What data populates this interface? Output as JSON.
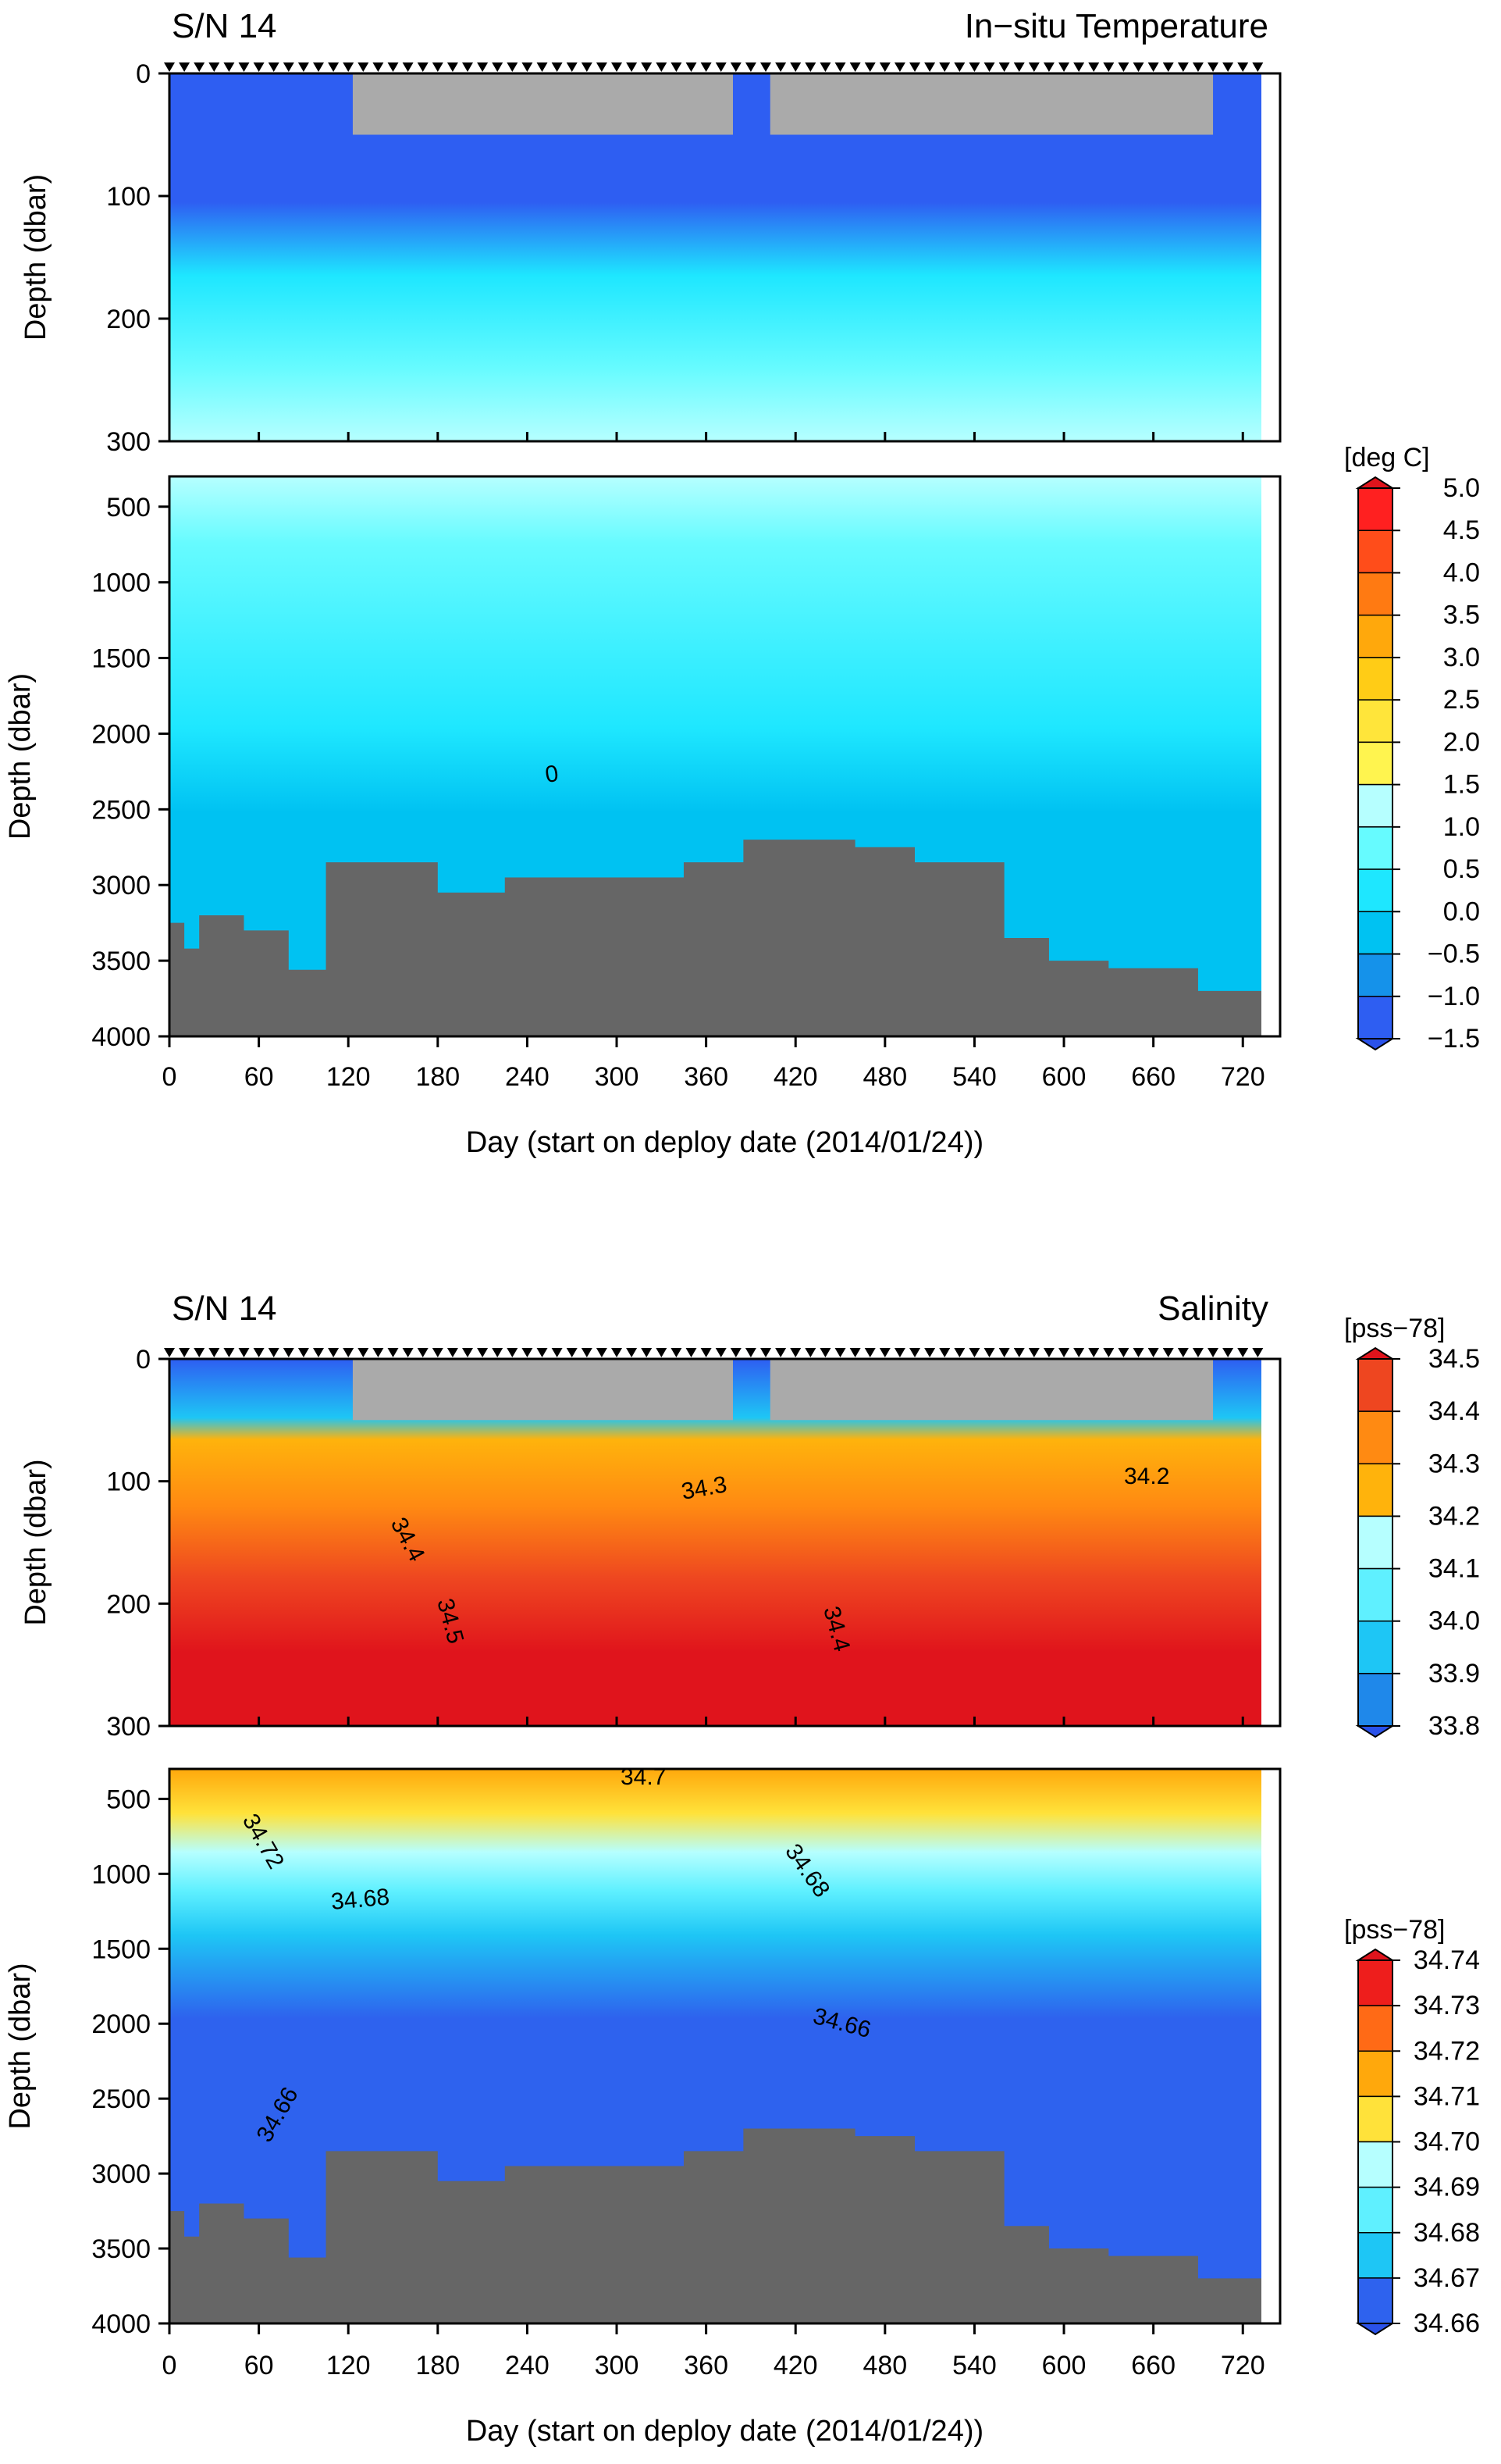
{
  "figure": {
    "xlabel": "Day (start on deploy date (2014/01/24))",
    "ylabel": "Depth (dbar)"
  },
  "colorbars": {
    "temperature": {
      "unit": "[deg C]",
      "ticks": [
        "5.0",
        "4.5",
        "4.0",
        "3.5",
        "3.0",
        "2.5",
        "2.0",
        "1.5",
        "1.0",
        "0.5",
        "0.0",
        "−0.5",
        "−1.0",
        "−1.5"
      ],
      "colors": [
        "#ff2020",
        "#ff4d1a",
        "#ff7a12",
        "#ffa80c",
        "#ffcc16",
        "#ffe53a",
        "#fff44f",
        "#b6ffff",
        "#66fbff",
        "#1ee7ff",
        "#00c2f2",
        "#1592ea",
        "#2e5ef2"
      ],
      "under_color": "#2a52ea",
      "over_color": "#e0141c"
    },
    "salinity_upper": {
      "unit": "[pss−78]",
      "ticks": [
        "34.5",
        "34.4",
        "34.3",
        "34.2",
        "34.1",
        "34.0",
        "33.9",
        "33.8"
      ],
      "colors": [
        "#ee4620",
        "#ff8a12",
        "#ffb30c",
        "#b6ffff",
        "#5ff0ff",
        "#1ec6f5",
        "#1f88ea"
      ],
      "under_color": "#2a52ea",
      "over_color": "#e0141c"
    },
    "salinity_lower": {
      "unit": "[pss−78]",
      "ticks": [
        "34.74",
        "34.73",
        "34.72",
        "34.71",
        "34.70",
        "34.69",
        "34.68",
        "34.67",
        "34.66"
      ],
      "colors": [
        "#ee1e1c",
        "#ff6a16",
        "#ffa80c",
        "#ffe23a",
        "#b6ffff",
        "#5ff0ff",
        "#1ec6f5",
        "#2e62ee"
      ],
      "under_color": "#2a52ea",
      "over_color": "#e0141c"
    }
  },
  "chart_data": [
    {
      "type": "heatmap",
      "panel": "temperature",
      "title_left": "S/N 14",
      "title_right": "In−situ Temperature",
      "xlabel": "Day (start on deploy date (2014/01/24))",
      "ylabel": "Depth (dbar)",
      "xlim": [
        0,
        745
      ],
      "x_ticks": [
        "0",
        "60",
        "120",
        "180",
        "240",
        "300",
        "360",
        "420",
        "480",
        "540",
        "600",
        "660",
        "720"
      ],
      "upper_ylim": [
        0,
        300
      ],
      "upper_y_ticks": [
        "0",
        "100",
        "200",
        "300"
      ],
      "lower_ylim": [
        300,
        4000
      ],
      "lower_y_ticks": [
        "500",
        "1000",
        "1500",
        "2000",
        "2500",
        "3000",
        "3500",
        "4000"
      ],
      "contour_labels": [
        "0"
      ],
      "no_data_days": [
        [
          123,
          378
        ],
        [
          403,
          700
        ]
      ],
      "no_data_depth": [
        0,
        50
      ],
      "bottom_depth_steps": {
        "days": [
          0,
          10,
          20,
          50,
          80,
          105,
          180,
          225,
          300,
          345,
          385,
          420,
          460,
          500,
          560,
          590,
          630,
          690,
          740
        ],
        "depths": [
          3250,
          3420,
          3200,
          3300,
          3560,
          2850,
          3050,
          2950,
          2950,
          2850,
          2700,
          2700,
          2750,
          2850,
          3350,
          3500,
          3550,
          3700,
          3700
        ]
      }
    },
    {
      "type": "heatmap",
      "panel": "salinity",
      "title_left": "S/N 14",
      "title_right": "Salinity",
      "xlabel": "Day (start on deploy date (2014/01/24))",
      "ylabel": "Depth (dbar)",
      "xlim": [
        0,
        745
      ],
      "x_ticks": [
        "0",
        "60",
        "120",
        "180",
        "240",
        "300",
        "360",
        "420",
        "480",
        "540",
        "600",
        "660",
        "720"
      ],
      "upper_ylim": [
        0,
        300
      ],
      "upper_y_ticks": [
        "0",
        "100",
        "200",
        "300"
      ],
      "lower_ylim": [
        300,
        4000
      ],
      "lower_y_ticks": [
        "500",
        "1000",
        "1500",
        "2000",
        "2500",
        "3000",
        "3500",
        "4000"
      ],
      "contour_labels_upper": [
        "34.2",
        "34.3",
        "34.4",
        "34.5",
        "34.4"
      ],
      "contour_labels_lower": [
        "34.7",
        "34.72",
        "34.68",
        "34.68",
        "34.66",
        "34.66"
      ],
      "no_data_days": [
        [
          123,
          378
        ],
        [
          403,
          700
        ]
      ],
      "no_data_depth": [
        0,
        50
      ],
      "bottom_depth_steps": {
        "days": [
          0,
          10,
          20,
          50,
          80,
          105,
          180,
          225,
          300,
          345,
          385,
          420,
          460,
          500,
          560,
          590,
          630,
          690,
          740
        ],
        "depths": [
          3250,
          3420,
          3200,
          3300,
          3560,
          2850,
          3050,
          2950,
          2950,
          2850,
          2700,
          2700,
          2750,
          2850,
          3350,
          3500,
          3550,
          3700,
          3700
        ]
      }
    }
  ]
}
